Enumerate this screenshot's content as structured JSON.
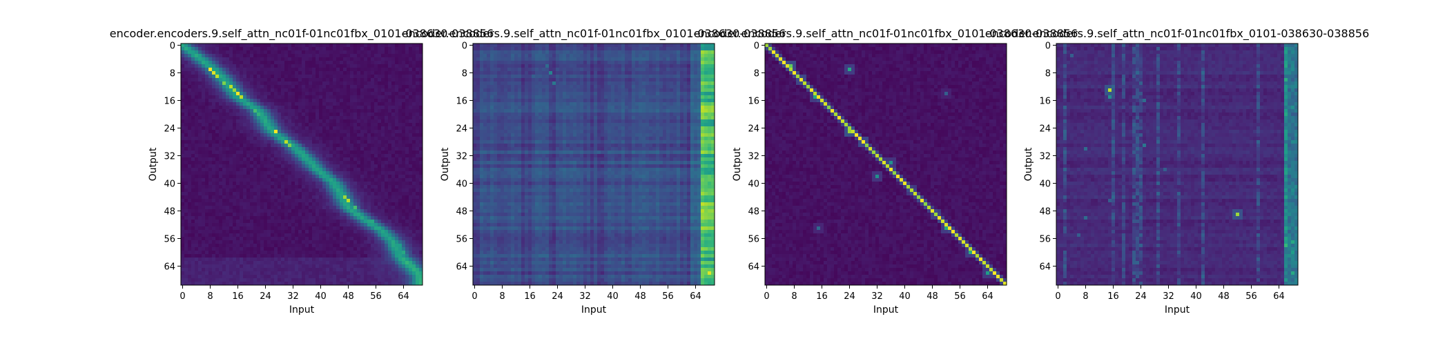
{
  "colors": {
    "low": "#440154",
    "high": "#fde725",
    "colormap": "viridis"
  },
  "chart_data": [
    {
      "type": "heatmap",
      "title": "encoder.encoders.9.self_attn_nc01f-01nc01fbx_0101-038630-038856",
      "xlabel": "Input",
      "ylabel": "Output",
      "xticks": [
        "0",
        "8",
        "16",
        "24",
        "32",
        "40",
        "48",
        "56",
        "64"
      ],
      "yticks": [
        "0",
        "8",
        "16",
        "24",
        "32",
        "40",
        "48",
        "56",
        "64"
      ],
      "xlim": [
        0,
        69
      ],
      "ylim": [
        0,
        69
      ],
      "pattern": "diagonal-band",
      "diagonal": [
        [
          0,
          0
        ],
        [
          4,
          3
        ],
        [
          9,
          7
        ],
        [
          12,
          10
        ],
        [
          16,
          15
        ],
        [
          22,
          19
        ],
        [
          26,
          25
        ],
        [
          33,
          30
        ],
        [
          39,
          36
        ],
        [
          44,
          40
        ],
        [
          48,
          47
        ],
        [
          52,
          50
        ],
        [
          55,
          52
        ],
        [
          58,
          54
        ],
        [
          61,
          57
        ],
        [
          63,
          61
        ],
        [
          66,
          64
        ],
        [
          69,
          67
        ]
      ],
      "hotspots": [
        [
          8,
          7,
          1.0
        ],
        [
          9,
          8,
          0.95
        ],
        [
          10,
          9,
          0.9
        ],
        [
          12,
          11,
          0.8
        ],
        [
          14,
          12,
          0.9
        ],
        [
          15,
          13,
          0.85
        ],
        [
          16,
          14,
          1.0
        ],
        [
          17,
          15,
          0.9
        ],
        [
          21,
          19,
          0.7
        ],
        [
          22,
          20,
          0.65
        ],
        [
          27,
          25,
          1.0
        ],
        [
          30,
          28,
          0.9
        ],
        [
          31,
          29,
          0.8
        ],
        [
          47,
          44,
          0.85
        ],
        [
          48,
          45,
          0.9
        ],
        [
          50,
          47,
          0.7
        ],
        [
          55,
          51,
          0.6
        ],
        [
          63,
          58,
          0.55
        ],
        [
          64,
          60,
          0.6
        ]
      ]
    },
    {
      "type": "heatmap",
      "title": "encoder.encoders.9.self_attn_nc01f-01nc01fbx_0101-038630-038856",
      "xlabel": "Input",
      "ylabel": "Output",
      "xticks": [
        "0",
        "8",
        "16",
        "24",
        "32",
        "40",
        "48",
        "56",
        "64"
      ],
      "yticks": [
        "0",
        "8",
        "16",
        "24",
        "32",
        "40",
        "48",
        "56",
        "64"
      ],
      "xlim": [
        0,
        69
      ],
      "ylim": [
        0,
        69
      ],
      "pattern": "right-column",
      "diagonal": [],
      "hotspots": [
        [
          68,
          8,
          0.6
        ],
        [
          68,
          15,
          0.7
        ],
        [
          68,
          20,
          0.55
        ],
        [
          68,
          25,
          0.7
        ],
        [
          68,
          31,
          0.65
        ],
        [
          68,
          38,
          0.75
        ],
        [
          68,
          42,
          0.6
        ],
        [
          68,
          50,
          0.65
        ],
        [
          68,
          56,
          0.6
        ],
        [
          68,
          63,
          0.75
        ],
        [
          68,
          66,
          0.95
        ],
        [
          67,
          60,
          0.55
        ],
        [
          22,
          8,
          0.45
        ],
        [
          23,
          11,
          0.4
        ],
        [
          21,
          6,
          0.35
        ],
        [
          17,
          9,
          0.3
        ],
        [
          36,
          31,
          0.3
        ]
      ]
    },
    {
      "type": "heatmap",
      "title": "encoder.encoders.9.self_attn_nc01f-01nc01fbx_0101-038630-038856",
      "xlabel": "Input",
      "ylabel": "Output",
      "xticks": [
        "0",
        "8",
        "16",
        "24",
        "32",
        "40",
        "48",
        "56",
        "64"
      ],
      "yticks": [
        "0",
        "8",
        "16",
        "24",
        "32",
        "40",
        "48",
        "56",
        "64"
      ],
      "xlim": [
        0,
        69
      ],
      "ylim": [
        0,
        69
      ],
      "pattern": "sharp-diagonal",
      "diagonal": [
        [
          0,
          0
        ],
        [
          69,
          69
        ]
      ],
      "hotspots": [
        [
          7,
          6,
          0.75
        ],
        [
          10,
          10,
          0.7
        ],
        [
          14,
          15,
          0.6
        ],
        [
          24,
          7,
          0.6
        ],
        [
          24,
          25,
          0.85
        ],
        [
          28,
          28,
          0.75
        ],
        [
          32,
          38,
          0.5
        ],
        [
          36,
          34,
          0.5
        ],
        [
          42,
          42,
          0.55
        ],
        [
          49,
          49,
          0.6
        ],
        [
          52,
          53,
          0.6
        ],
        [
          52,
          14,
          0.3
        ],
        [
          15,
          53,
          0.35
        ],
        [
          59,
          60,
          0.6
        ],
        [
          64,
          66,
          0.55
        ]
      ]
    },
    {
      "type": "heatmap",
      "title": "encoder.encoders.9.self_attn_nc01f-01nc01fbx_0101-038630-038856",
      "xlabel": "Input",
      "ylabel": "Output",
      "xticks": [
        "0",
        "8",
        "16",
        "24",
        "32",
        "40",
        "48",
        "56",
        "64"
      ],
      "yticks": [
        "0",
        "8",
        "16",
        "24",
        "32",
        "40",
        "48",
        "56",
        "64"
      ],
      "xlim": [
        0,
        69
      ],
      "ylim": [
        0,
        69
      ],
      "pattern": "scattered-columns",
      "diagonal": [],
      "hotspots": [
        [
          15,
          13,
          0.9
        ],
        [
          15,
          15,
          0.5
        ],
        [
          52,
          49,
          0.85
        ],
        [
          68,
          57,
          0.6
        ],
        [
          68,
          60,
          0.55
        ],
        [
          68,
          66,
          0.6
        ],
        [
          68,
          12,
          0.45
        ],
        [
          68,
          21,
          0.4
        ],
        [
          25,
          29,
          0.4
        ],
        [
          25,
          16,
          0.35
        ],
        [
          8,
          30,
          0.35
        ],
        [
          8,
          50,
          0.35
        ],
        [
          6,
          55,
          0.3
        ],
        [
          31,
          36,
          0.3
        ],
        [
          15,
          45,
          0.3
        ],
        [
          42,
          55,
          0.3
        ],
        [
          4,
          3,
          0.3
        ]
      ]
    }
  ]
}
